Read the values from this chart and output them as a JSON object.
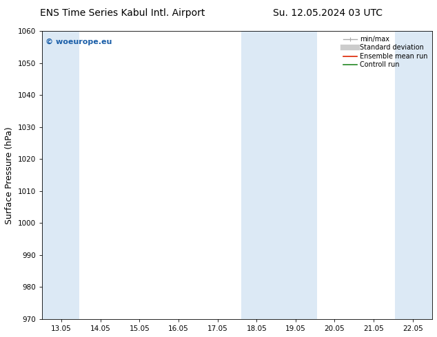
{
  "title_left": "ENS Time Series Kabul Intl. Airport",
  "title_right": "Su. 12.05.2024 03 UTC",
  "ylabel": "Surface Pressure (hPa)",
  "ylim": [
    970,
    1060
  ],
  "yticks": [
    970,
    980,
    990,
    1000,
    1010,
    1020,
    1030,
    1040,
    1050,
    1060
  ],
  "xlabel_dates": [
    "13.05",
    "14.05",
    "15.05",
    "16.05",
    "17.05",
    "18.05",
    "19.05",
    "20.05",
    "21.05",
    "22.05"
  ],
  "x_numeric": [
    1,
    2,
    3,
    4,
    5,
    6,
    7,
    8,
    9,
    10
  ],
  "xlim": [
    0.5,
    10.5
  ],
  "shaded_bands": [
    {
      "x_start": 0.5,
      "x_end": 1.45
    },
    {
      "x_start": 5.6,
      "x_end": 7.55
    },
    {
      "x_start": 9.55,
      "x_end": 10.5
    }
  ],
  "shade_color": "#dce9f5",
  "background_color": "#ffffff",
  "watermark": "© woeurope.eu",
  "watermark_color": "#1a5ea8",
  "legend_items": [
    {
      "label": "min/max",
      "color": "#aaaaaa",
      "lw": 1.0
    },
    {
      "label": "Standard deviation",
      "color": "#cccccc",
      "lw": 6.0
    },
    {
      "label": "Ensemble mean run",
      "color": "#dd2200",
      "lw": 1.2
    },
    {
      "label": "Controll run",
      "color": "#228822",
      "lw": 1.2
    }
  ],
  "title_fontsize": 10,
  "ylabel_fontsize": 9,
  "tick_fontsize": 7.5,
  "watermark_fontsize": 8,
  "legend_fontsize": 7
}
